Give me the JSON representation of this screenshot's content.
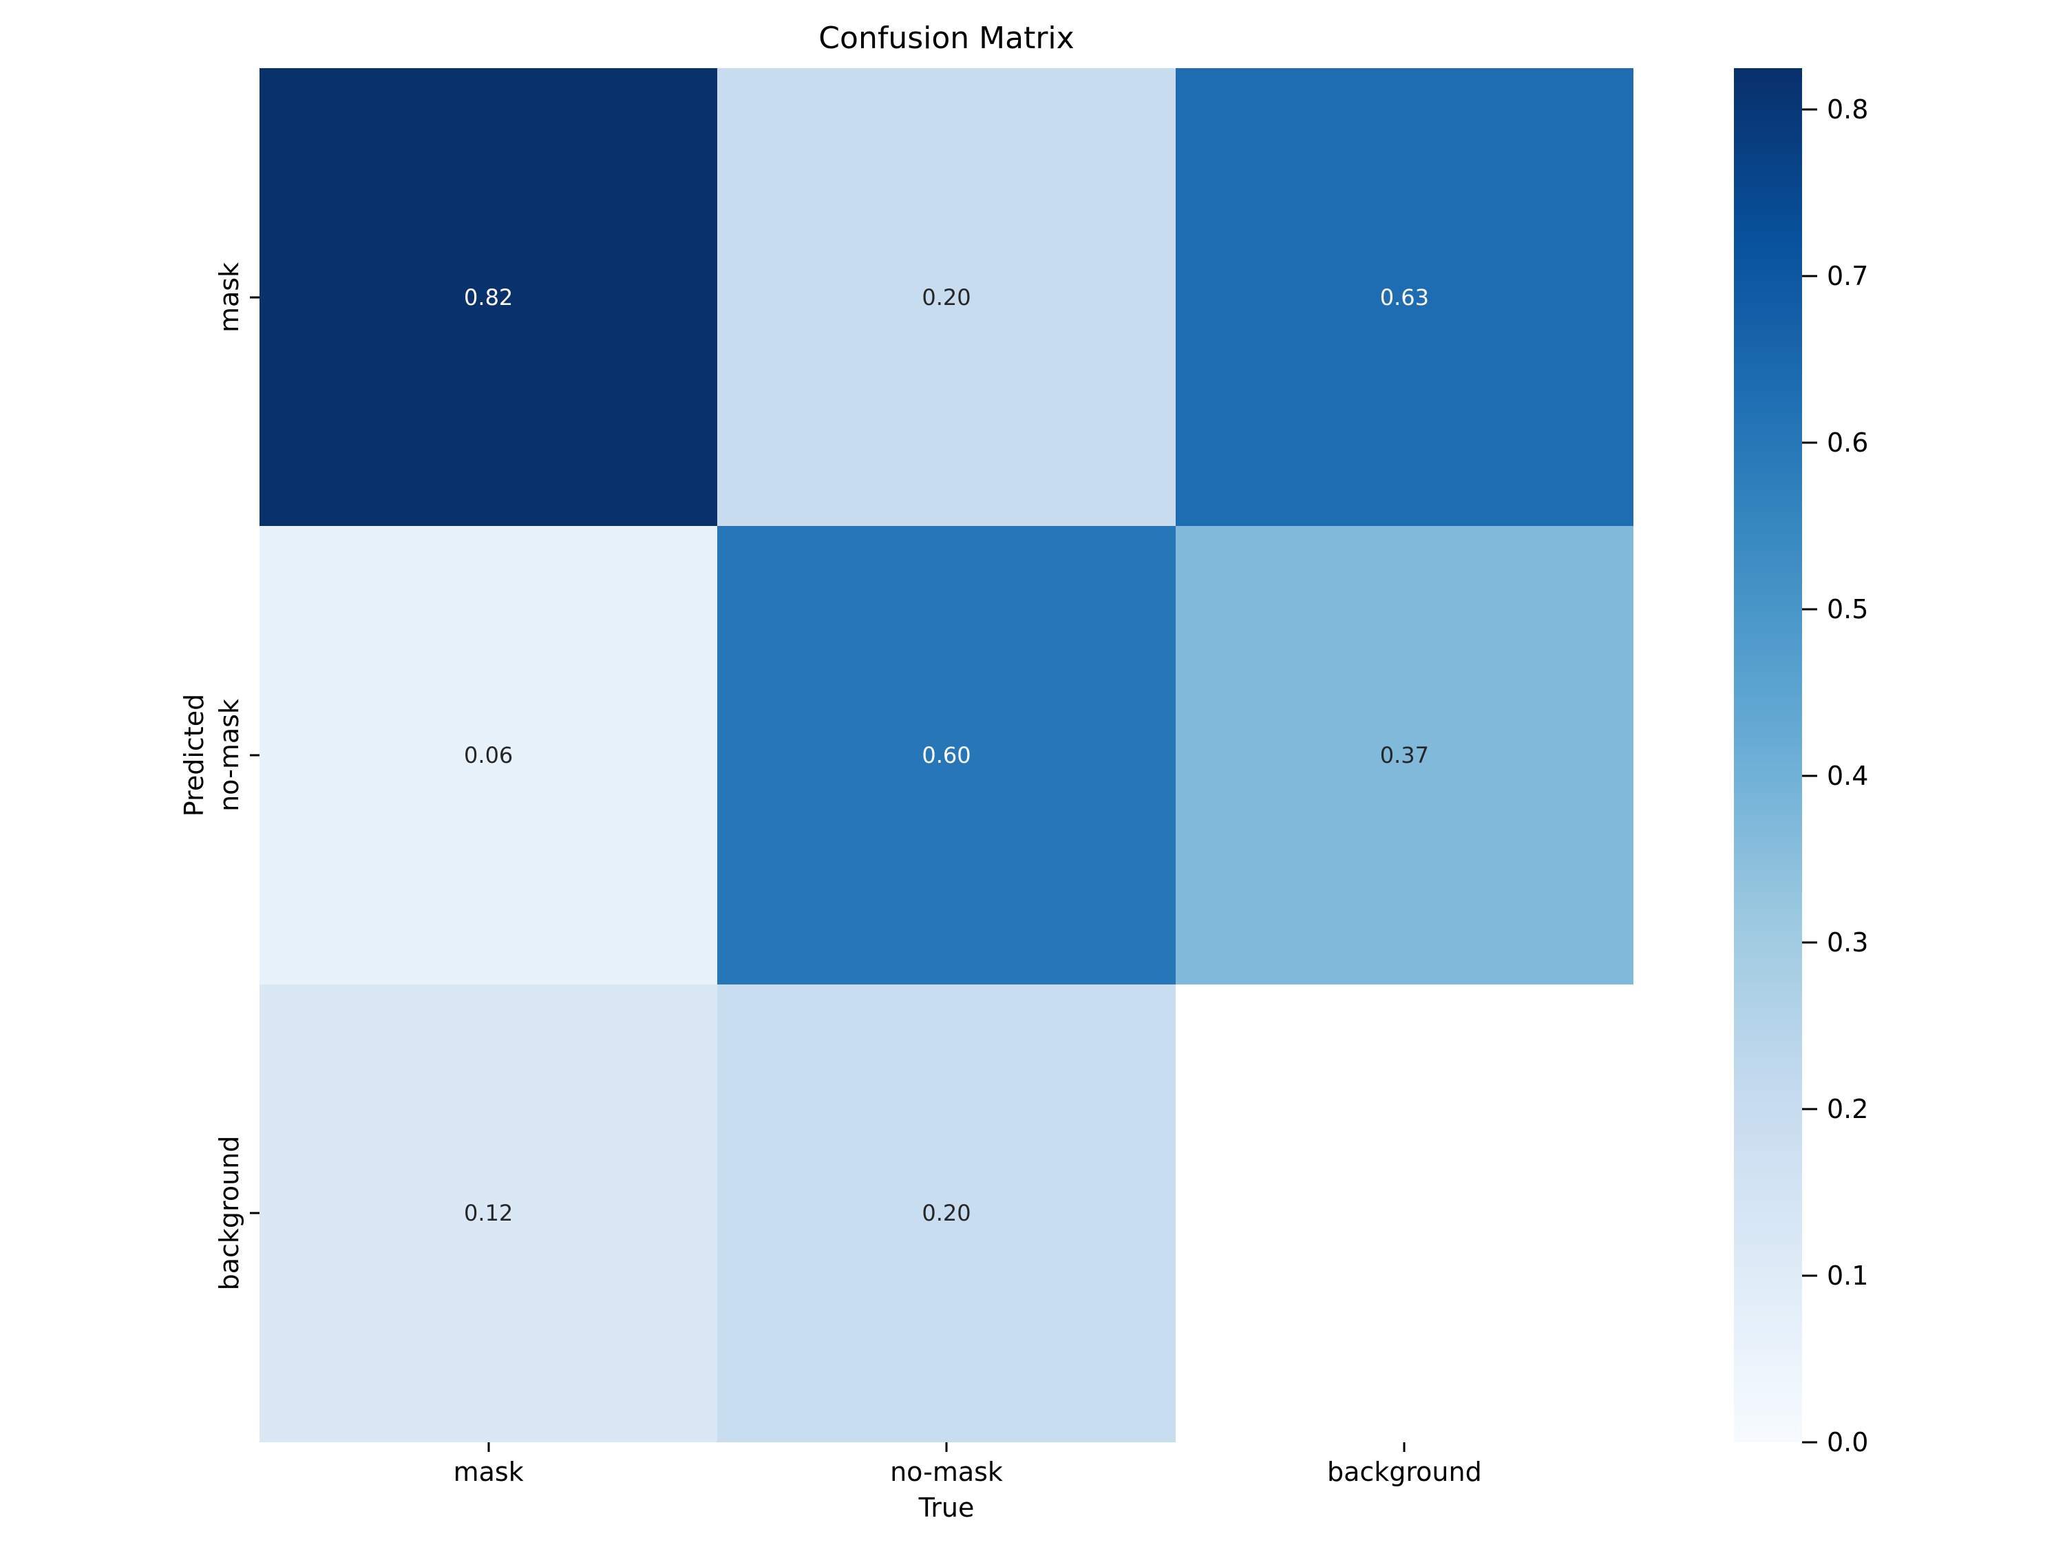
{
  "chart_data": {
    "type": "heatmap",
    "title": "Confusion Matrix",
    "xlabel": "True",
    "ylabel": "Predicted",
    "x_categories": [
      "mask",
      "no-mask",
      "background"
    ],
    "y_categories": [
      "mask",
      "no-mask",
      "background"
    ],
    "matrix": [
      [
        0.82,
        0.2,
        0.63
      ],
      [
        0.06,
        0.6,
        0.37
      ],
      [
        0.12,
        0.2,
        null
      ]
    ],
    "cells": [
      {
        "row": "mask",
        "col": "mask",
        "value": 0.82,
        "label": "0.82",
        "bg": "#09316c",
        "text_color": "#ffffff"
      },
      {
        "row": "mask",
        "col": "no-mask",
        "value": 0.2,
        "label": "0.20",
        "bg": "#c7dcef",
        "text_color": "#262626"
      },
      {
        "row": "mask",
        "col": "background",
        "value": 0.63,
        "label": "0.63",
        "bg": "#1e6db2",
        "text_color": "#ffffff"
      },
      {
        "row": "no-mask",
        "col": "mask",
        "value": 0.06,
        "label": "0.06",
        "bg": "#e8f2fa",
        "text_color": "#262626"
      },
      {
        "row": "no-mask",
        "col": "no-mask",
        "value": 0.6,
        "label": "0.60",
        "bg": "#2777b8",
        "text_color": "#ffffff"
      },
      {
        "row": "no-mask",
        "col": "background",
        "value": 0.37,
        "label": "0.37",
        "bg": "#80b9da",
        "text_color": "#262626"
      },
      {
        "row": "background",
        "col": "mask",
        "value": 0.12,
        "label": "0.12",
        "bg": "#dae8f6",
        "text_color": "#262626"
      },
      {
        "row": "background",
        "col": "no-mask",
        "value": 0.2,
        "label": "0.20",
        "bg": "#c8ddef",
        "text_color": "#262626"
      },
      {
        "row": "background",
        "col": "background",
        "value": null,
        "label": "",
        "bg": "#ffffff",
        "text_color": "#262626"
      }
    ],
    "colorbar": {
      "position": "right",
      "vmin": 0.0,
      "vmax": 0.8248,
      "tick_labels": [
        "0.8",
        "0.7",
        "0.6",
        "0.5",
        "0.4",
        "0.3",
        "0.2",
        "0.1",
        "0.0"
      ],
      "tick_values": [
        0.8,
        0.7,
        0.6,
        0.5,
        0.4,
        0.3,
        0.2,
        0.1,
        0.0
      ],
      "colormap_name": "Blues",
      "gradient_top_to_bottom": [
        "#08306b",
        "#08519c",
        "#2171b5",
        "#4292c6",
        "#6baed6",
        "#9ecae1",
        "#c6dbef",
        "#deebf7",
        "#f7fbff"
      ]
    },
    "grid": false,
    "annotated": true
  }
}
